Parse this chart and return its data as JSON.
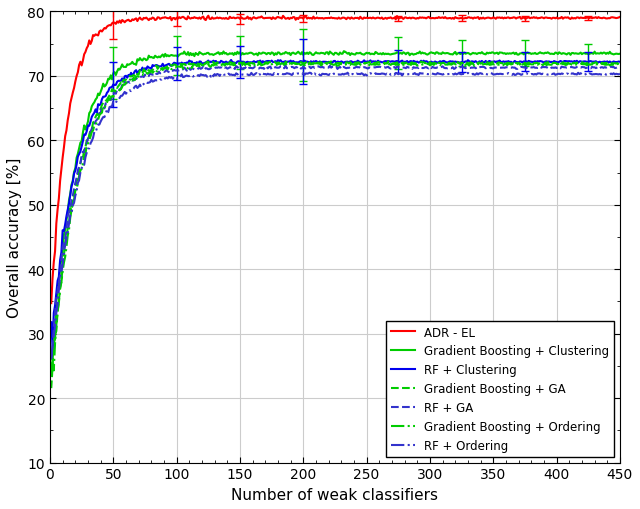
{
  "xlabel": "Number of weak classifiers",
  "ylabel": "Overall accuracy [%]",
  "xlim": [
    0,
    450
  ],
  "ylim": [
    10,
    80
  ],
  "yticks": [
    10,
    20,
    30,
    40,
    50,
    60,
    70,
    80
  ],
  "xticks": [
    0,
    50,
    100,
    150,
    200,
    250,
    300,
    350,
    400,
    450
  ],
  "series": [
    {
      "label": "ADR - EL",
      "color": "#FF0000",
      "linestyle": "solid",
      "linewidth": 1.5,
      "asymptote": 79.0,
      "start": 30.5,
      "rate": 0.08,
      "noise": 0.5,
      "seed": 1,
      "errorbar_x": [
        50,
        100,
        150,
        200,
        275,
        325,
        375,
        425
      ],
      "errorbar_neg": [
        2.5,
        1.3,
        0.8,
        0.6,
        0.4,
        0.4,
        0.35,
        0.3
      ],
      "errorbar_pos": [
        2.5,
        1.3,
        0.8,
        0.6,
        0.4,
        0.4,
        0.35,
        0.3
      ]
    },
    {
      "label": "Gradient Boosting + Clustering",
      "color": "#00CC00",
      "linestyle": "solid",
      "linewidth": 1.5,
      "asymptote": 73.5,
      "start": 21.0,
      "rate": 0.055,
      "noise": 0.6,
      "seed": 2,
      "errorbar_x": [
        50,
        100,
        150,
        200,
        275,
        325,
        375,
        425
      ],
      "errorbar_neg": [
        4.0,
        3.0,
        2.5,
        4.0,
        2.5,
        2.0,
        2.0,
        1.5
      ],
      "errorbar_pos": [
        4.0,
        3.0,
        2.5,
        4.0,
        2.5,
        2.0,
        2.0,
        1.5
      ]
    },
    {
      "label": "RF + Clustering",
      "color": "#0000EE",
      "linestyle": "solid",
      "linewidth": 1.5,
      "asymptote": 72.2,
      "start": 26.5,
      "rate": 0.05,
      "noise": 0.5,
      "seed": 3,
      "errorbar_x": [
        50,
        100,
        150,
        200,
        275,
        325,
        375,
        425
      ],
      "errorbar_neg": [
        3.5,
        2.5,
        2.5,
        3.5,
        1.8,
        1.5,
        1.5,
        1.5
      ],
      "errorbar_pos": [
        3.5,
        2.5,
        2.5,
        3.5,
        1.8,
        1.5,
        1.5,
        1.5
      ]
    },
    {
      "label": "Gradient Boosting + GA",
      "color": "#00CC00",
      "linestyle": "dashed",
      "linewidth": 1.5,
      "asymptote": 72.0,
      "start": 20.0,
      "rate": 0.05,
      "noise": 0.5,
      "seed": 4,
      "errorbar_x": [],
      "errorbar_neg": [],
      "errorbar_pos": []
    },
    {
      "label": "RF + GA",
      "color": "#3333CC",
      "linestyle": "dashed",
      "linewidth": 1.5,
      "asymptote": 71.3,
      "start": 25.0,
      "rate": 0.048,
      "noise": 0.5,
      "seed": 5,
      "errorbar_x": [],
      "errorbar_neg": [],
      "errorbar_pos": []
    },
    {
      "label": "Gradient Boosting + Ordering",
      "color": "#00CC00",
      "linestyle": "dashdot",
      "linewidth": 1.5,
      "asymptote": 71.8,
      "start": 19.5,
      "rate": 0.048,
      "noise": 0.5,
      "seed": 6,
      "errorbar_x": [],
      "errorbar_neg": [],
      "errorbar_pos": []
    },
    {
      "label": "RF + Ordering",
      "color": "#3333CC",
      "linestyle": "dashdot",
      "linewidth": 1.5,
      "asymptote": 70.3,
      "start": 24.0,
      "rate": 0.046,
      "noise": 0.5,
      "seed": 7,
      "errorbar_x": [],
      "errorbar_neg": [],
      "errorbar_pos": []
    }
  ],
  "legend_loc": "lower right",
  "grid_color": "#CCCCCC",
  "background_color": "#FFFFFF",
  "errorbar_capsize": 3,
  "errorbar_linewidth": 1.0
}
